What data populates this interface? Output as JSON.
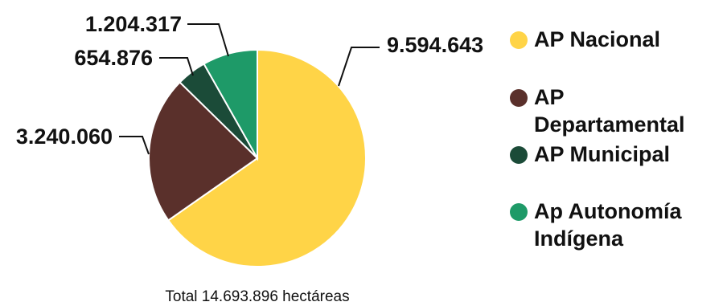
{
  "chart_data": {
    "type": "pie",
    "categories": [
      "AP Nacional",
      "AP Departamental",
      "AP Municipal",
      "Ap Autonomía Indígena"
    ],
    "values": [
      9594643,
      3240060,
      654876,
      1204317
    ],
    "value_labels": [
      "9.594.643",
      "3.240.060",
      "654.876",
      "1.204.317"
    ],
    "colors": [
      "#FFD447",
      "#5A302B",
      "#1B4B38",
      "#1E9A68"
    ],
    "total_label": "Total 14.693.896 hectáreas",
    "legend_position": "right",
    "start_angle": "top",
    "direction": "clockwise"
  }
}
